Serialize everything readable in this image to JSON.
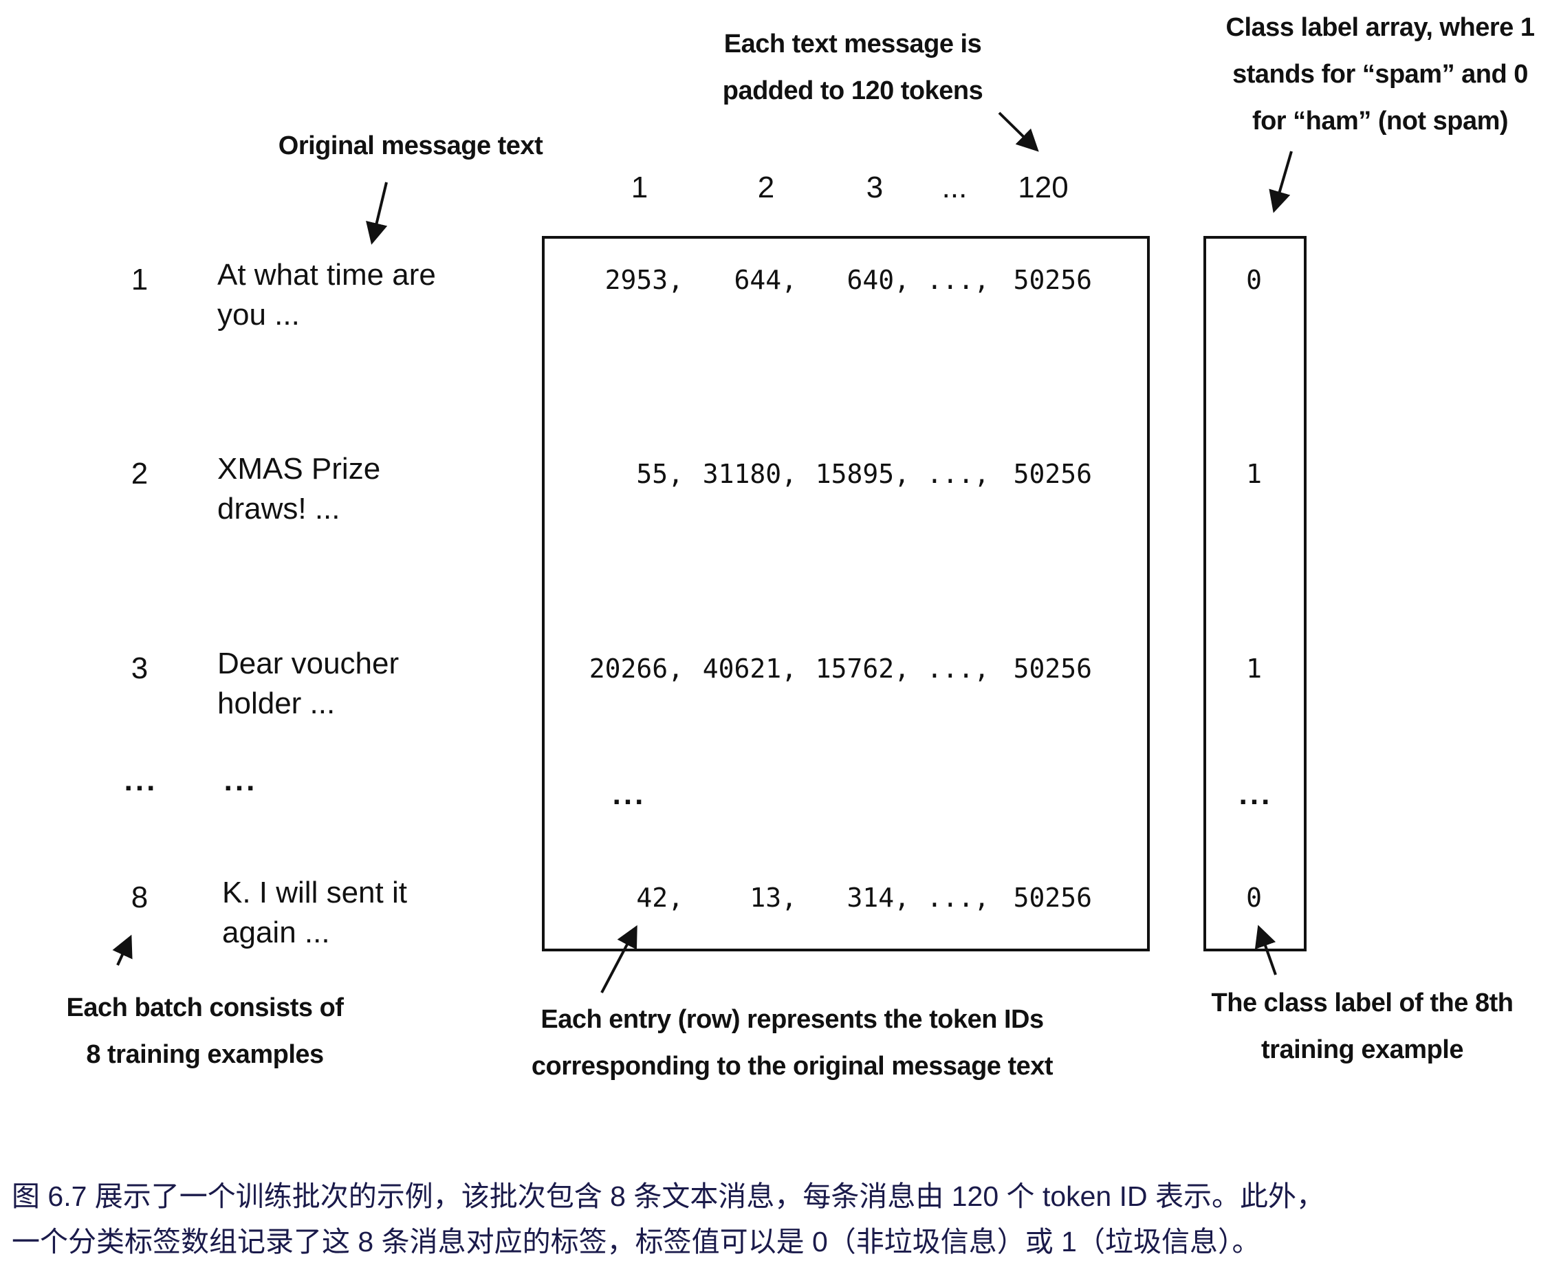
{
  "annotations": {
    "original_text": "Original message text",
    "padded": [
      "Each text message is",
      "padded to 120 tokens"
    ],
    "class_label": [
      "Class label array, where 1",
      "stands for “spam” and 0",
      "for “ham” (not spam)"
    ],
    "batch": [
      "Each batch consists of",
      "8 training examples"
    ],
    "entry": [
      "Each entry (row) represents the token IDs",
      "corresponding to the original message text"
    ],
    "eighth": [
      "The class label of the 8th",
      "training example"
    ]
  },
  "column_headers": [
    "1",
    "2",
    "3",
    "...",
    "120"
  ],
  "rows": [
    {
      "num": "1",
      "text": [
        "At what time are",
        "you ..."
      ],
      "tokens": [
        "2953,",
        "644,",
        "640,",
        "...,",
        "50256"
      ],
      "label": "0"
    },
    {
      "num": "2",
      "text": [
        "XMAS Prize",
        "draws!  ..."
      ],
      "tokens": [
        "55,",
        "31180,",
        "15895,",
        "...,",
        "50256"
      ],
      "label": "1"
    },
    {
      "num": "3",
      "text": [
        "Dear voucher",
        "holder ..."
      ],
      "tokens": [
        "20266,",
        "40621,",
        "15762,",
        "...,",
        "50256"
      ],
      "label": "1"
    },
    {
      "num": "8",
      "text": [
        "K. I will sent it",
        "again ..."
      ],
      "tokens": [
        "42,",
        "13,",
        "314,",
        "...,",
        "50256"
      ],
      "label": "0"
    }
  ],
  "ellipsis": "...",
  "caption": [
    "图 6.7 展示了一个训练批次的示例，该批次包含 8 条文本消息，每条消息由 120 个 token ID 表示。此外，",
    "一个分类标签数组记录了这 8 条消息对应的标签，标签值可以是 0（非垃圾信息）或 1（垃圾信息）。"
  ]
}
